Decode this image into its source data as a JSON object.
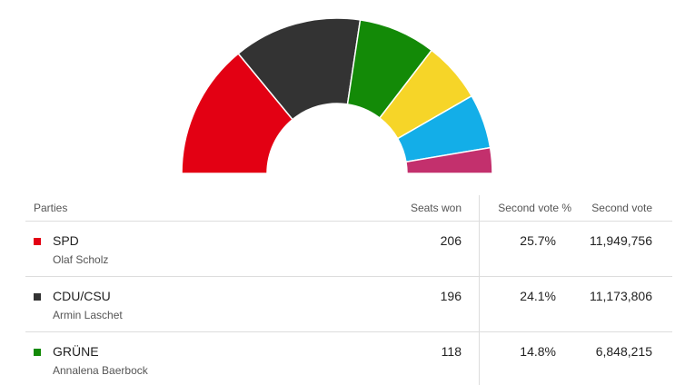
{
  "chart_data": {
    "type": "hemicycle",
    "values": [
      206,
      196,
      118,
      92,
      83,
      39
    ],
    "colors": [
      "#e30013",
      "#333333",
      "#138a07",
      "#f6d528",
      "#13aee8",
      "#c3306d"
    ]
  },
  "table": {
    "headers": [
      "Parties",
      "Seats won",
      "Second vote %",
      "Second vote"
    ],
    "rows": [
      {
        "party": "SPD",
        "leader": "Olaf Scholz",
        "seats": "206",
        "vote_pct": "25.7%",
        "votes": "11,949,756"
      },
      {
        "party": "CDU/CSU",
        "leader": "Armin Laschet",
        "seats": "196",
        "vote_pct": "24.1%",
        "votes": "11,173,806"
      },
      {
        "party": "GRÜNE",
        "leader": "Annalena Baerbock",
        "seats": "118",
        "vote_pct": "14.8%",
        "votes": "6,848,215"
      }
    ]
  }
}
